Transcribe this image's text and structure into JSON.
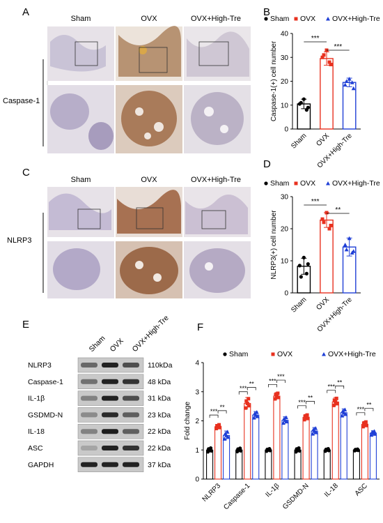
{
  "panel_labels": {
    "A": "A",
    "B": "B",
    "C": "C",
    "D": "D",
    "E": "E",
    "F": "F"
  },
  "groups": [
    "Sham",
    "OVX",
    "OVX+High-Tre"
  ],
  "colors": {
    "sham": "#000000",
    "ovx": "#e8311f",
    "high": "#1f3fd6",
    "stain": "#7a4a2a",
    "tissue": "#e9e3e6"
  },
  "histology": {
    "A": {
      "row_label": "Caspase-1"
    },
    "C": {
      "row_label": "NLRP3"
    }
  },
  "blot": {
    "proteins": [
      "NLRP3",
      "Caspase-1",
      "IL-1β",
      "GSDMD-N",
      "IL-18",
      "ASC",
      "GAPDH"
    ],
    "sizes": [
      "110kDa",
      "48 kDa",
      "31 kDa",
      "23 kDa",
      "22 kDa",
      "22 kDa",
      "37 kDa"
    ]
  },
  "chart_data": [
    {
      "panel": "B",
      "type": "bar",
      "categories": [
        "Sham",
        "OVX",
        "OVX+High-Tre"
      ],
      "values": [
        10.5,
        29.5,
        19.5
      ],
      "errors": [
        2.0,
        2.8,
        1.8
      ],
      "points": [
        [
          12.5,
          10.5,
          9,
          11,
          8
        ],
        [
          33,
          30,
          27,
          31,
          28
        ],
        [
          21,
          18.5,
          17,
          20,
          19.5
        ]
      ],
      "legend": [
        "Sham",
        "OVX",
        "OVX+High-Tre"
      ],
      "legend_position": "top",
      "ylabel": "Caspase-1(+) cell number",
      "ylim": [
        0,
        40
      ],
      "yticks": [
        0,
        10,
        20,
        30,
        40
      ],
      "significance": [
        {
          "from": 0,
          "to": 1,
          "label": "***"
        },
        {
          "from": 1,
          "to": 2,
          "label": "***"
        }
      ]
    },
    {
      "panel": "D",
      "type": "bar",
      "categories": [
        "Sham",
        "OVX",
        "OVX+High-Tre"
      ],
      "values": [
        8.3,
        22.7,
        14.3
      ],
      "errors": [
        2.5,
        2.3,
        2.8
      ],
      "points": [
        [
          11,
          8.5,
          9,
          5,
          6
        ],
        [
          25,
          23,
          21,
          22,
          20
        ],
        [
          17,
          15,
          13,
          13.5,
          12.5
        ]
      ],
      "legend": [
        "Sham",
        "OVX",
        "OVX+High-Tre"
      ],
      "legend_position": "top",
      "ylabel": "NLRP3(+) cell number",
      "ylim": [
        0,
        30
      ],
      "yticks": [
        0,
        10,
        20,
        30
      ],
      "significance": [
        {
          "from": 0,
          "to": 1,
          "label": "***"
        },
        {
          "from": 1,
          "to": 2,
          "label": "**"
        }
      ]
    },
    {
      "panel": "F",
      "type": "bar",
      "categories": [
        "NLRP3",
        "Caspase-1",
        "IL-1β",
        "GSDMD-N",
        "IL-18",
        "ASC"
      ],
      "series": [
        {
          "name": "Sham",
          "values": [
            1.0,
            1.0,
            1.0,
            1.0,
            1.0,
            1.0
          ],
          "errors": [
            0.08,
            0.07,
            0.05,
            0.08,
            0.05,
            0.03
          ]
        },
        {
          "name": "OVX",
          "values": [
            1.8,
            2.6,
            2.85,
            2.12,
            2.65,
            1.88
          ],
          "errors": [
            0.08,
            0.2,
            0.12,
            0.1,
            0.15,
            0.1
          ]
        },
        {
          "name": "OVX+High-Tre",
          "values": [
            1.5,
            2.2,
            2.02,
            1.65,
            2.28,
            1.58
          ],
          "errors": [
            0.15,
            0.12,
            0.12,
            0.12,
            0.13,
            0.08
          ]
        }
      ],
      "legend_position": "top",
      "ylabel": "Fold change",
      "ylim": [
        0,
        4
      ],
      "yticks": [
        0,
        1,
        2,
        3,
        4
      ],
      "significance": [
        [
          {
            "label": "***"
          },
          {
            "label": "**"
          }
        ],
        [
          {
            "label": "***"
          },
          {
            "label": "**"
          }
        ],
        [
          {
            "label": "***"
          },
          {
            "label": "***"
          }
        ],
        [
          {
            "label": "***"
          },
          {
            "label": "**"
          }
        ],
        [
          {
            "label": "***"
          },
          {
            "label": "**"
          }
        ],
        [
          {
            "label": "***"
          },
          {
            "label": "**"
          }
        ]
      ]
    }
  ]
}
